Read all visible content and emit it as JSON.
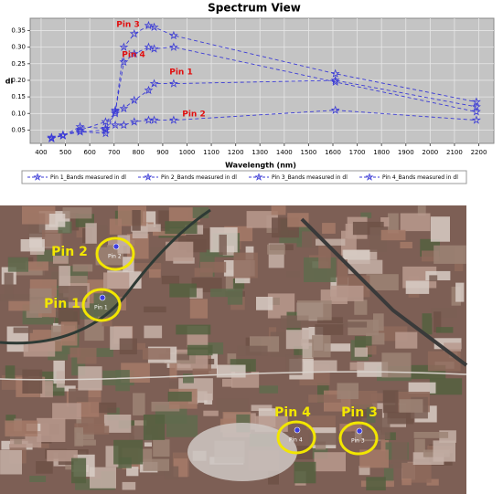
{
  "chart_data": {
    "type": "line",
    "title": "Spectrum View",
    "x_label": "Wavelength (nm)",
    "y_label": "dl",
    "x": [
      443,
      490,
      560,
      665,
      705,
      740,
      783,
      842,
      865,
      945,
      1610,
      2190
    ],
    "series": [
      {
        "name": "Pin 1_Bands measured in dl",
        "color": "#3b3bd6",
        "values": [
          0.025,
          0.035,
          0.045,
          0.05,
          0.11,
          0.115,
          0.14,
          0.17,
          0.19,
          0.19,
          0.2,
          0.12
        ]
      },
      {
        "name": "Pin 2_Bands measured in dl",
        "color": "#3b3bd6",
        "values": [
          0.025,
          0.033,
          0.06,
          0.055,
          0.065,
          0.065,
          0.075,
          0.08,
          0.08,
          0.08,
          0.11,
          0.08
        ]
      },
      {
        "name": "Pin 3_Bands measured in dl",
        "color": "#3b3bd6",
        "values": [
          0.025,
          0.035,
          0.05,
          0.075,
          0.1,
          0.3,
          0.34,
          0.365,
          0.36,
          0.335,
          0.22,
          0.135
        ]
      },
      {
        "name": "Pin 4_Bands measured in dl",
        "color": "#3b3bd6",
        "values": [
          0.028,
          0.035,
          0.045,
          0.04,
          0.105,
          0.255,
          0.28,
          0.3,
          0.295,
          0.3,
          0.195,
          0.105
        ]
      }
    ],
    "annotations": [
      "Pin 3",
      "Pin 4",
      "Pin 1",
      "Pin 2"
    ],
    "xlim": [
      355,
      2262
    ],
    "xticks": [
      400,
      500,
      600,
      700,
      800,
      900,
      1000,
      1100,
      1200,
      1300,
      1400,
      1500,
      1600,
      1700,
      1800,
      1900,
      2000,
      2100,
      2200
    ],
    "ylim": [
      0.01,
      0.387
    ],
    "yticks": [
      0.05,
      {
        "value": 0.1,
        "label": "0.10"
      },
      0.15,
      {
        "value": 0.2,
        "label": "0.20"
      },
      0.25,
      {
        "value": 0.3,
        "label": "0.30"
      },
      0.35
    ],
    "grid": true,
    "legend": "bottom"
  },
  "image": {
    "labels": [
      "Pin 2",
      "Pin 1",
      "Pin 4",
      "Pin 3"
    ],
    "pin_labels": [
      "Pin 2",
      "Pin 1",
      "Pin 4",
      "Pin 3"
    ]
  }
}
